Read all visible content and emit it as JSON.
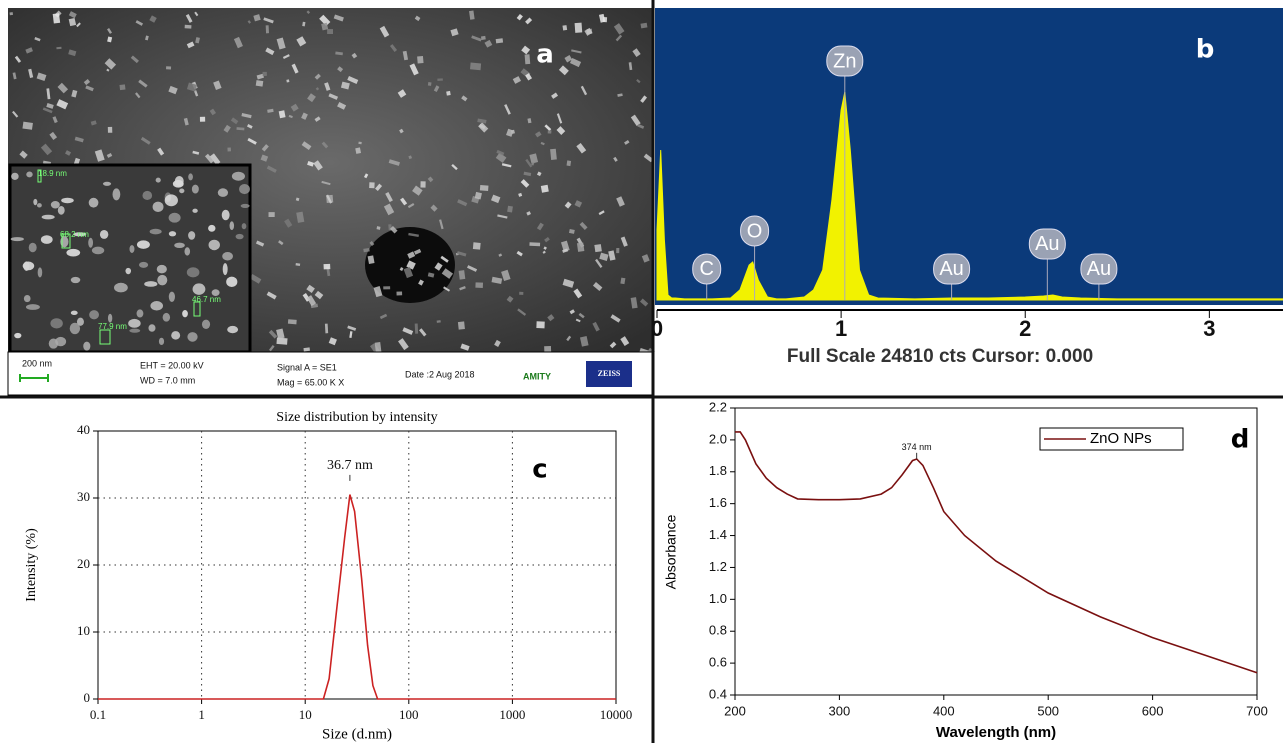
{
  "sem_panel": {
    "label": "a",
    "inset_measurements": [
      "18.9 nm",
      "68.2 nm",
      "46.7 nm",
      "77.9 nm"
    ],
    "scale_bar": "200 nm",
    "eht": "EHT = 20.00 kV",
    "wd": "WD = 7.0 mm",
    "signal": "Signal A = SE1",
    "mag": "Mag = 65.00 K X",
    "date": "Date :2 Aug 2018",
    "institution": "AMITY",
    "brand": "ZEISS"
  },
  "chart_data": [
    {
      "type": "area",
      "panel_label": "b",
      "footer": "Full Scale 24810 cts Cursor: 0.000",
      "x": [
        0,
        0.02,
        0.04,
        0.06,
        0.08,
        0.1,
        0.15,
        0.2,
        0.3,
        0.4,
        0.45,
        0.5,
        0.52,
        0.55,
        0.6,
        0.65,
        0.7,
        0.8,
        0.85,
        0.9,
        0.95,
        1.0,
        1.02,
        1.05,
        1.1,
        1.15,
        1.2,
        1.4,
        1.6,
        1.8,
        2.0,
        2.1,
        2.15,
        2.2,
        2.3,
        2.5,
        3.0,
        3.4
      ],
      "series": [
        {
          "color": "#f2f200",
          "values": [
            5990,
            12830,
            5130,
            430,
            170,
            170,
            90,
            90,
            90,
            170,
            860,
            2990,
            3250,
            1710,
            260,
            90,
            90,
            260,
            860,
            2570,
            8560,
            16250,
            17790,
            12830,
            2570,
            430,
            170,
            90,
            170,
            170,
            260,
            340,
            430,
            260,
            170,
            90,
            90,
            90
          ]
        }
      ],
      "annotations": [
        {
          "text": "C",
          "x": 0.27,
          "y": 2570
        },
        {
          "text": "O",
          "x": 0.53,
          "y": 5820
        },
        {
          "text": "Zn",
          "x": 1.02,
          "y": 20360
        },
        {
          "text": "Au",
          "x": 1.6,
          "y": 2570
        },
        {
          "text": "Au",
          "x": 2.12,
          "y": 4710
        },
        {
          "text": "Au",
          "x": 2.4,
          "y": 2570
        }
      ],
      "xlim": [
        0,
        3.4
      ],
      "ylim": [
        0,
        24810
      ],
      "xticks": [
        0,
        1,
        2,
        3
      ],
      "grid": false
    },
    {
      "type": "line",
      "panel_label": "c",
      "title": "Size distribution by intensity",
      "xlabel": "Size (d.nm)",
      "ylabel": "Intensity (%)",
      "x": [
        0.1,
        1,
        10,
        15,
        17,
        20,
        24,
        27,
        30,
        35,
        40,
        45,
        50,
        100,
        1000,
        10000
      ],
      "series": [
        {
          "color": "#cc2222",
          "values": [
            0,
            0,
            0,
            0,
            3,
            13,
            24,
            30.5,
            28,
            18,
            8,
            2,
            0,
            0,
            0,
            0
          ]
        }
      ],
      "annotations": [
        {
          "text": "36.7 nm",
          "x": 27,
          "y": 33
        }
      ],
      "xlog": true,
      "xlim": [
        0.1,
        10000
      ],
      "ylim": [
        0,
        40
      ],
      "xticks": [
        0.1,
        1,
        10,
        100,
        1000,
        10000
      ],
      "yticks": [
        0,
        10,
        20,
        30,
        40
      ],
      "grid": true
    },
    {
      "type": "line",
      "panel_label": "d",
      "xlabel": "Wavelength (nm)",
      "ylabel": "Absorbance",
      "legend": "upper right",
      "x": [
        200,
        205,
        210,
        220,
        230,
        240,
        250,
        260,
        280,
        300,
        320,
        340,
        350,
        360,
        370,
        374,
        380,
        390,
        400,
        420,
        450,
        500,
        550,
        600,
        650,
        700
      ],
      "series": [
        {
          "name": "ZnO NPs",
          "color": "#7a1010",
          "values": [
            2.05,
            2.05,
            2.0,
            1.85,
            1.76,
            1.7,
            1.66,
            1.63,
            1.625,
            1.625,
            1.63,
            1.66,
            1.7,
            1.78,
            1.87,
            1.88,
            1.84,
            1.7,
            1.55,
            1.4,
            1.24,
            1.04,
            0.89,
            0.76,
            0.65,
            0.54
          ]
        }
      ],
      "annotations": [
        {
          "text": "374 nm",
          "x": 374,
          "y": 1.9
        }
      ],
      "xlim": [
        200,
        700
      ],
      "ylim": [
        0.4,
        2.2
      ],
      "xticks": [
        200,
        300,
        400,
        500,
        600,
        700
      ],
      "yticks": [
        0.4,
        0.6,
        0.8,
        {
          "value": 1,
          "label": "1.0"
        },
        1.2,
        1.4,
        1.6,
        1.8,
        {
          "value": 2,
          "label": "2.0"
        },
        2.2
      ],
      "grid": false
    }
  ]
}
